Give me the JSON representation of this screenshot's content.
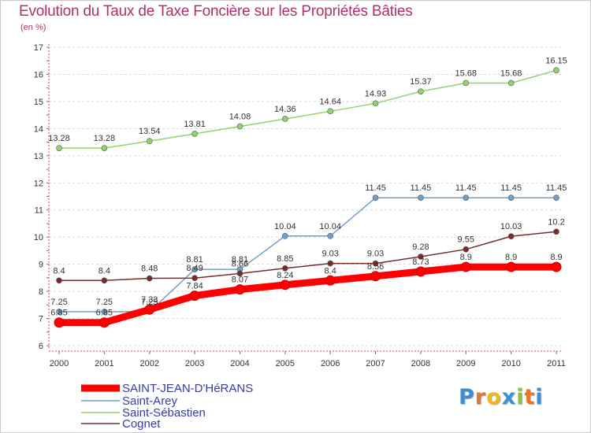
{
  "title": "Evolution du Taux de Taxe Foncière sur les Propriétés Bâties",
  "subtitle": "(en %)",
  "logo": {
    "text": "Proxiti",
    "letter_colors": [
      "#3b8fd6",
      "#e8762a",
      "#f2b520",
      "#3b8fd6",
      "#8cc43a",
      "#e8762a",
      "#3b8fd6"
    ]
  },
  "chart_data": {
    "type": "line",
    "title": "Evolution du Taux de Taxe Foncière sur les Propriétés Bâties",
    "subtitle": "(en %)",
    "x": [
      "2000",
      "2001",
      "2002",
      "2003",
      "2004",
      "2005",
      "2006",
      "2007",
      "2008",
      "2009",
      "2010",
      "2011"
    ],
    "ylim": [
      6,
      17
    ],
    "yticks": [
      6,
      7,
      8,
      9,
      10,
      11,
      12,
      13,
      14,
      15,
      16,
      17
    ],
    "grid": "horizontal dashed",
    "legend_position": "bottom-left",
    "series": [
      {
        "name": "SAINT-JEAN-D'HéRANS",
        "color": "#ff0000",
        "values": [
          6.85,
          6.85,
          7.33,
          7.84,
          8.07,
          8.24,
          8.4,
          8.56,
          8.73,
          8.9,
          8.9,
          8.9
        ],
        "labels": [
          "6.85",
          "6.85",
          "7.33",
          "7.84",
          "8.07",
          "8.24",
          "8.4",
          "8.56",
          "8.73",
          "8.9",
          "8.9",
          "8.9"
        ]
      },
      {
        "name": "Saint-Arey",
        "color": "#6fa0c9",
        "values": [
          7.25,
          7.25,
          7.25,
          8.81,
          8.81,
          10.04,
          10.04,
          11.45,
          11.45,
          11.45,
          11.45,
          11.45
        ],
        "labels": [
          "7.25",
          "7.25",
          "7.25",
          "8.81",
          "8.81",
          "10.04",
          "10.04",
          "11.45",
          "11.45",
          "11.45",
          "11.45",
          "11.45"
        ]
      },
      {
        "name": "Saint-Sébastien",
        "color": "#92d36d",
        "values": [
          13.28,
          13.28,
          13.54,
          13.81,
          14.08,
          14.36,
          14.64,
          14.93,
          15.37,
          15.68,
          15.68,
          16.15
        ],
        "labels": [
          "13.28",
          "13.28",
          "13.54",
          "13.81",
          "14.08",
          "14.36",
          "14.64",
          "14.93",
          "15.37",
          "15.68",
          "15.68",
          "16.15"
        ]
      },
      {
        "name": "Cognet",
        "color": "#7a2a2a",
        "values": [
          8.4,
          8.4,
          8.48,
          8.49,
          8.66,
          8.85,
          9.03,
          9.03,
          9.28,
          9.55,
          10.03,
          10.2
        ],
        "labels": [
          "8.4",
          "8.4",
          "8.48",
          "8.49",
          "8.66",
          "8.85",
          "9.03",
          "9.03",
          "9.28",
          "9.55",
          "10.03",
          "10.2"
        ]
      }
    ]
  }
}
